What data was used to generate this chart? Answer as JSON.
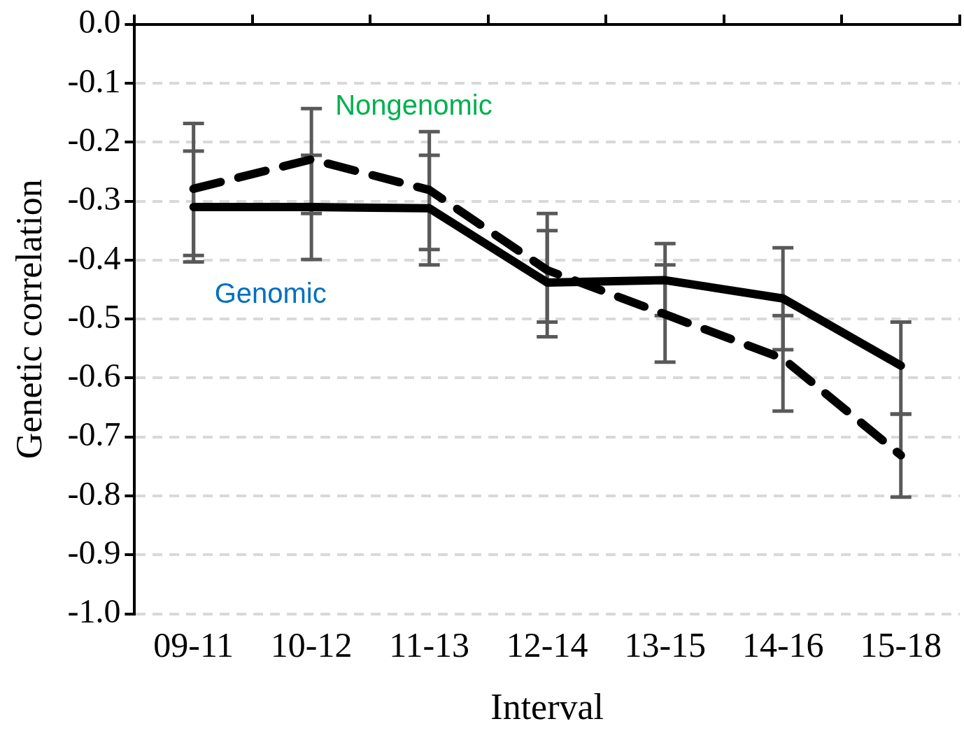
{
  "chart_data": {
    "type": "line",
    "xlabel": "Interval",
    "ylabel": "Genetic correlation",
    "categories": [
      "09-11",
      "10-12",
      "11-13",
      "12-14",
      "13-15",
      "14-16",
      "15-18"
    ],
    "series": [
      {
        "name": "Genomic",
        "color": "#000000",
        "line_style": "solid",
        "values": [
          -0.31,
          -0.31,
          -0.312,
          -0.438,
          -0.434,
          -0.465,
          -0.579
        ],
        "errors": [
          [
            -0.403,
            -0.215
          ],
          [
            -0.399,
            -0.222
          ],
          [
            -0.408,
            -0.222
          ],
          [
            -0.53,
            -0.35
          ],
          [
            -0.494,
            -0.372
          ],
          [
            -0.552,
            -0.379
          ],
          [
            -0.661,
            -0.505
          ]
        ]
      },
      {
        "name": "Nongenomic",
        "color": "#000000",
        "line_style": "dashed",
        "values": [
          -0.279,
          -0.229,
          -0.281,
          -0.417,
          -0.492,
          -0.567,
          -0.731
        ],
        "errors": [
          [
            -0.392,
            -0.168
          ],
          [
            -0.321,
            -0.143
          ],
          [
            -0.382,
            -0.182
          ],
          [
            -0.505,
            -0.321
          ],
          [
            -0.573,
            -0.408
          ],
          [
            -0.656,
            -0.494
          ],
          [
            -0.802,
            -0.661
          ]
        ]
      }
    ],
    "ylim": [
      -1.0,
      0.0
    ],
    "yticks": [
      {
        "value": 0,
        "label": "0.0"
      },
      {
        "value": -0.1,
        "label": "-0.1"
      },
      {
        "value": -0.2,
        "label": "-0.2"
      },
      {
        "value": -0.3,
        "label": "-0.3"
      },
      {
        "value": -0.4,
        "label": "-0.4"
      },
      {
        "value": -0.5,
        "label": "-0.5"
      },
      {
        "value": -0.6,
        "label": "-0.6"
      },
      {
        "value": -0.7,
        "label": "-0.7"
      },
      {
        "value": -0.8,
        "label": "-0.8"
      },
      {
        "value": -0.9,
        "label": "-0.9"
      },
      {
        "value": -1.0,
        "label": "-1.0"
      }
    ],
    "grid": "y",
    "legend": false,
    "marker": "none"
  }
}
